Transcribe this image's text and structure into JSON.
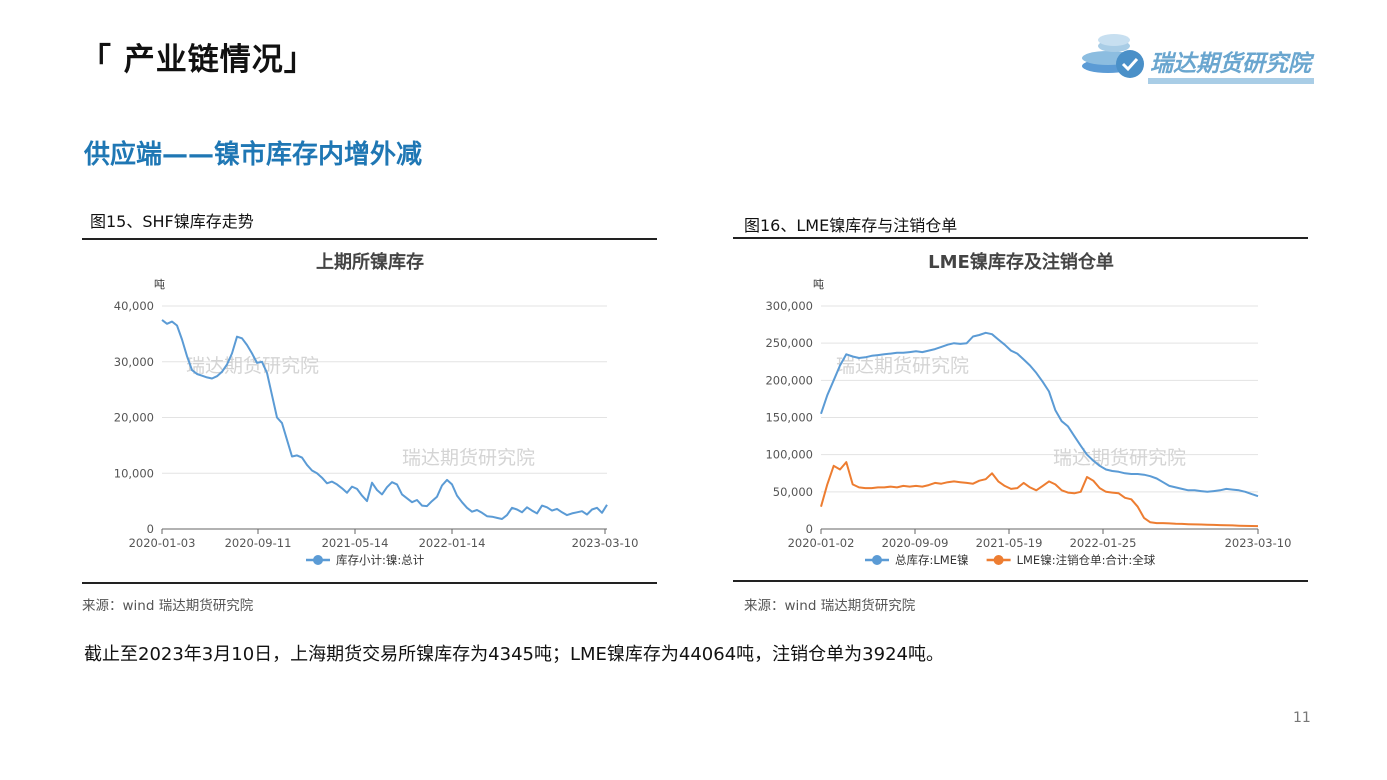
{
  "header": {
    "title": "「 产业链情况」",
    "logo_text": "瑞达期货研究院"
  },
  "section": {
    "title": "供应端——镍市库存内增外减"
  },
  "figures": [
    {
      "caption": "图15、SHF镍库存走势",
      "source": "来源：wind   瑞达期货研究院"
    },
    {
      "caption": "图16、LME镍库存与注销仓单",
      "source": "来源：wind   瑞达期货研究院"
    }
  ],
  "summary": "截止至2023年3月10日，上海期货交易所镍库存为4345吨；LME镍库存为44064吨，注销仓单为3924吨。",
  "page_number": "11",
  "colors": {
    "blue": "#5b9bd5",
    "orange": "#ed7d31",
    "accent": "#1f77b4"
  },
  "chart_data": [
    {
      "type": "line",
      "title": "上期所镍库存",
      "ylabel": "吨",
      "ylim": [
        0,
        40000
      ],
      "yticks": [
        "0",
        "10,000",
        "20,000",
        "30,000",
        "40,000"
      ],
      "xticks": [
        "2020-01-03",
        "2020-09-11",
        "2021-05-14",
        "2022-01-14",
        "2023-03-10"
      ],
      "watermarks": [
        "瑞达期货研究院",
        "瑞达期货研究院"
      ],
      "grid": true,
      "legend_position": "bottom",
      "series": [
        {
          "name": "库存小计:镍:总计",
          "color": "#5b9bd5",
          "values": [
            37500,
            36800,
            37200,
            36500,
            34000,
            31000,
            28500,
            27800,
            27500,
            27200,
            27000,
            27400,
            28200,
            29500,
            31500,
            34500,
            34200,
            33000,
            31500,
            29800,
            30000,
            28000,
            24000,
            20000,
            19000,
            16000,
            13000,
            13200,
            12800,
            11500,
            10500,
            10000,
            9200,
            8200,
            8500,
            8000,
            7300,
            6500,
            7600,
            7200,
            6000,
            5000,
            8300,
            7000,
            6200,
            7500,
            8400,
            8000,
            6200,
            5500,
            4800,
            5200,
            4200,
            4100,
            5000,
            5800,
            7800,
            8800,
            8000,
            6000,
            4800,
            3800,
            3100,
            3400,
            2900,
            2300,
            2200,
            2000,
            1800,
            2500,
            3800,
            3500,
            3000,
            3900,
            3300,
            2800,
            4200,
            3900,
            3300,
            3600,
            3000,
            2500,
            2800,
            3000,
            3200,
            2600,
            3500,
            3800,
            2900,
            4345
          ]
        }
      ]
    },
    {
      "type": "line",
      "title": "LME镍库存及注销仓单",
      "ylabel": "吨",
      "ylim": [
        0,
        300000
      ],
      "yticks": [
        "0",
        "50,000",
        "100,000",
        "150,000",
        "200,000",
        "250,000",
        "300,000"
      ],
      "xticks": [
        "2020-01-02",
        "2020-09-09",
        "2021-05-19",
        "2022-01-25",
        "2023-03-10"
      ],
      "watermarks": [
        "瑞达期货研究院",
        "瑞达期货研究院"
      ],
      "grid": true,
      "legend_position": "bottom",
      "series": [
        {
          "name": "总库存:LME镍",
          "color": "#5b9bd5",
          "values": [
            155000,
            180000,
            200000,
            220000,
            235000,
            232000,
            230000,
            231000,
            233000,
            234000,
            235000,
            236000,
            237000,
            237000,
            238000,
            239000,
            238000,
            240000,
            242000,
            245000,
            248000,
            250000,
            249000,
            250000,
            259000,
            261000,
            264000,
            262000,
            255000,
            248000,
            240000,
            236000,
            228000,
            220000,
            210000,
            198000,
            185000,
            160000,
            145000,
            138000,
            125000,
            112000,
            100000,
            92000,
            85000,
            80000,
            78000,
            77000,
            75000,
            74000,
            74000,
            73000,
            71000,
            68000,
            63000,
            58000,
            56000,
            54000,
            52000,
            52000,
            51000,
            50000,
            51000,
            52000,
            54000,
            53000,
            52000,
            50000,
            47000,
            44064
          ]
        },
        {
          "name": "LME镍:注销仓单:合计:全球",
          "color": "#ed7d31",
          "values": [
            30000,
            60000,
            85000,
            80000,
            90000,
            60000,
            56000,
            55000,
            55000,
            56000,
            56000,
            57000,
            56000,
            58000,
            57000,
            58000,
            57000,
            59000,
            62000,
            61000,
            63000,
            64000,
            63000,
            62000,
            61000,
            65000,
            67000,
            75000,
            64000,
            58000,
            54000,
            55000,
            62000,
            56000,
            52000,
            58000,
            64000,
            60000,
            52000,
            49000,
            48000,
            50000,
            70000,
            65000,
            55000,
            50000,
            49000,
            48000,
            42000,
            40000,
            30000,
            15000,
            9000,
            8000,
            8000,
            7500,
            7000,
            6800,
            6500,
            6200,
            6000,
            5800,
            5500,
            5200,
            5000,
            4800,
            4500,
            4200,
            4000,
            3924
          ]
        }
      ]
    }
  ]
}
